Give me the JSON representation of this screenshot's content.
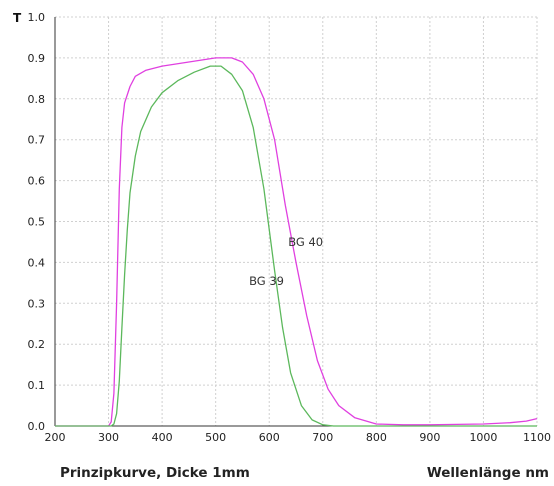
{
  "chart_data": {
    "type": "line",
    "ylabel": "T",
    "xlabel": "Wellenlänge nm",
    "caption": "Prinzipkurve, Dicke 1mm",
    "xlim": [
      200,
      1100
    ],
    "ylim": [
      0.0,
      1.0
    ],
    "x_ticks": [
      "200",
      "300",
      "400",
      "500",
      "600",
      "700",
      "800",
      "900",
      "1000",
      "1100"
    ],
    "y_ticks": [
      "0.0",
      "0.1",
      "0.2",
      "0.3",
      "0.4",
      "0.5",
      "0.6",
      "0.7",
      "0.8",
      "0.9",
      "1.0"
    ],
    "grid": true,
    "series": [
      {
        "name": "BG 40",
        "color": "#e040e0",
        "points": [
          [
            200,
            0
          ],
          [
            300,
            0
          ],
          [
            305,
            0.01
          ],
          [
            310,
            0.08
          ],
          [
            315,
            0.3
          ],
          [
            320,
            0.58
          ],
          [
            325,
            0.73
          ],
          [
            330,
            0.79
          ],
          [
            340,
            0.83
          ],
          [
            350,
            0.855
          ],
          [
            370,
            0.87
          ],
          [
            400,
            0.88
          ],
          [
            450,
            0.89
          ],
          [
            500,
            0.9
          ],
          [
            530,
            0.9
          ],
          [
            550,
            0.89
          ],
          [
            570,
            0.86
          ],
          [
            590,
            0.8
          ],
          [
            610,
            0.7
          ],
          [
            630,
            0.54
          ],
          [
            650,
            0.4
          ],
          [
            670,
            0.27
          ],
          [
            690,
            0.16
          ],
          [
            710,
            0.09
          ],
          [
            730,
            0.05
          ],
          [
            760,
            0.02
          ],
          [
            800,
            0.005
          ],
          [
            850,
            0.003
          ],
          [
            900,
            0.003
          ],
          [
            950,
            0.004
          ],
          [
            1000,
            0.005
          ],
          [
            1050,
            0.008
          ],
          [
            1080,
            0.012
          ],
          [
            1100,
            0.018
          ]
        ]
      },
      {
        "name": "BG 39",
        "color": "#5cb85c",
        "points": [
          [
            200,
            0
          ],
          [
            305,
            0
          ],
          [
            310,
            0.005
          ],
          [
            315,
            0.03
          ],
          [
            320,
            0.11
          ],
          [
            325,
            0.24
          ],
          [
            330,
            0.37
          ],
          [
            335,
            0.48
          ],
          [
            340,
            0.57
          ],
          [
            350,
            0.66
          ],
          [
            360,
            0.72
          ],
          [
            380,
            0.78
          ],
          [
            400,
            0.815
          ],
          [
            430,
            0.845
          ],
          [
            460,
            0.865
          ],
          [
            490,
            0.88
          ],
          [
            510,
            0.88
          ],
          [
            530,
            0.86
          ],
          [
            550,
            0.82
          ],
          [
            570,
            0.73
          ],
          [
            590,
            0.58
          ],
          [
            610,
            0.38
          ],
          [
            625,
            0.24
          ],
          [
            640,
            0.13
          ],
          [
            660,
            0.05
          ],
          [
            680,
            0.015
          ],
          [
            700,
            0.003
          ],
          [
            720,
            0
          ],
          [
            1100,
            0
          ]
        ]
      }
    ],
    "annotations": [
      {
        "text": "BG 40",
        "x": 668,
        "y": 0.44
      },
      {
        "text": "BG 39",
        "x": 595,
        "y": 0.345
      }
    ]
  }
}
